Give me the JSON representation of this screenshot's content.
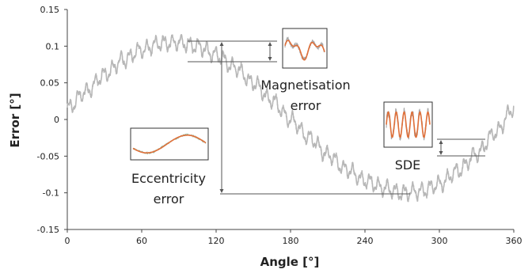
{
  "chart_data": {
    "type": "line",
    "xlabel": "Angle [°]",
    "ylabel": "Error [°]",
    "xlim": [
      0,
      360
    ],
    "ylim": [
      -0.15,
      0.15
    ],
    "x_ticks": [
      "0",
      "60",
      "120",
      "180",
      "240",
      "300",
      "360"
    ],
    "y_ticks": [
      "0.15",
      "0.1",
      "0.05",
      "0",
      "-0.05",
      "-0.1",
      "-0.15"
    ],
    "grid": false,
    "series": [
      {
        "color": "#b7b7b7",
        "x": [
          0,
          15,
          30,
          45,
          60,
          75,
          90,
          105,
          120,
          135,
          150,
          165,
          180,
          195,
          210,
          225,
          240,
          255,
          270,
          285,
          300,
          315,
          330,
          345,
          360
        ],
        "values": [
          0.015,
          0.038,
          0.061,
          0.081,
          0.095,
          0.104,
          0.105,
          0.1,
          0.088,
          0.071,
          0.05,
          0.026,
          0.0,
          -0.025,
          -0.048,
          -0.068,
          -0.083,
          -0.093,
          -0.1,
          -0.098,
          -0.088,
          -0.07,
          -0.047,
          -0.018,
          0.015
        ]
      }
    ],
    "annotations": [
      {
        "label_lines": [
          "Magnetisation",
          "error"
        ]
      },
      {
        "label_lines": [
          "Eccentricity",
          "error"
        ]
      },
      {
        "label_lines": [
          "SDE"
        ]
      }
    ],
    "colors": {
      "main": "#b7b7b7",
      "fit": "#e0703a",
      "inset_green": "#8fb69a",
      "axis": "#444444",
      "marker": "#555555"
    }
  }
}
